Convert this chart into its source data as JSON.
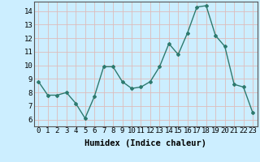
{
  "x": [
    0,
    1,
    2,
    3,
    4,
    5,
    6,
    7,
    8,
    9,
    10,
    11,
    12,
    13,
    14,
    15,
    16,
    17,
    18,
    19,
    20,
    21,
    22,
    23
  ],
  "y": [
    8.8,
    7.8,
    7.8,
    8.0,
    7.2,
    6.1,
    7.7,
    9.9,
    9.9,
    8.8,
    8.3,
    8.4,
    8.8,
    9.9,
    11.6,
    10.8,
    12.4,
    14.3,
    14.4,
    12.2,
    11.4,
    8.6,
    8.4,
    6.5
  ],
  "line_color": "#2d7a6e",
  "bg_color": "#cceeff",
  "grid_color": "#ddbcbc",
  "xlabel": "Humidex (Indice chaleur)",
  "ylim": [
    5.5,
    14.7
  ],
  "xlim": [
    -0.5,
    23.5
  ],
  "yticks": [
    6,
    7,
    8,
    9,
    10,
    11,
    12,
    13,
    14
  ],
  "xticks": [
    0,
    1,
    2,
    3,
    4,
    5,
    6,
    7,
    8,
    9,
    10,
    11,
    12,
    13,
    14,
    15,
    16,
    17,
    18,
    19,
    20,
    21,
    22,
    23
  ],
  "marker": "D",
  "marker_size": 2.0,
  "line_width": 1.0,
  "xlabel_fontsize": 7.5,
  "tick_fontsize": 6.5
}
